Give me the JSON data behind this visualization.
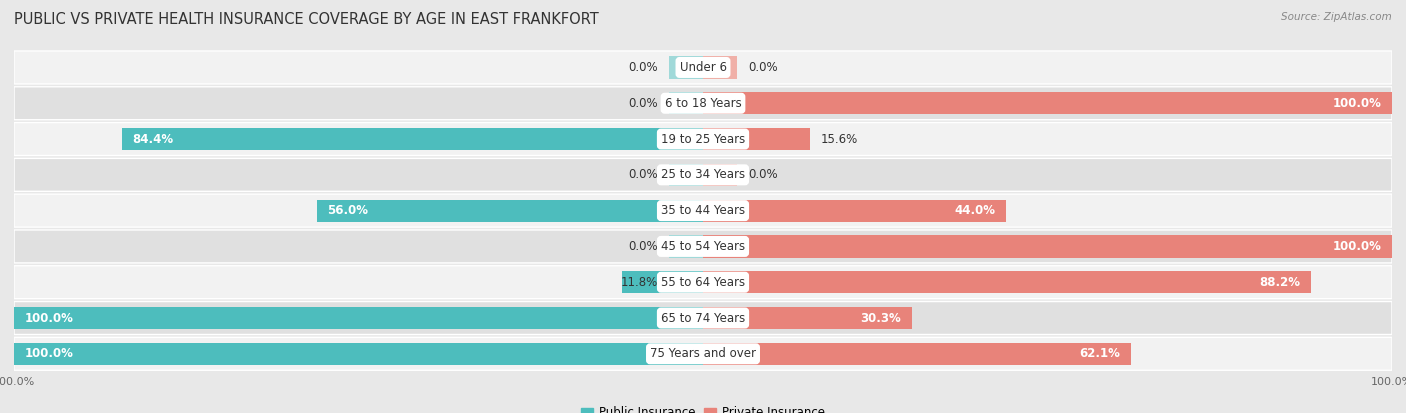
{
  "title": "PUBLIC VS PRIVATE HEALTH INSURANCE COVERAGE BY AGE IN EAST FRANKFORT",
  "source": "Source: ZipAtlas.com",
  "categories": [
    "Under 6",
    "6 to 18 Years",
    "19 to 25 Years",
    "25 to 34 Years",
    "35 to 44 Years",
    "45 to 54 Years",
    "55 to 64 Years",
    "65 to 74 Years",
    "75 Years and over"
  ],
  "public_values": [
    0.0,
    0.0,
    84.4,
    0.0,
    56.0,
    0.0,
    11.8,
    100.0,
    100.0
  ],
  "private_values": [
    0.0,
    100.0,
    15.6,
    0.0,
    44.0,
    100.0,
    88.2,
    30.3,
    62.1
  ],
  "public_color": "#4dbdbd",
  "private_color": "#e8837a",
  "public_color_light": "#a0d9d9",
  "private_color_light": "#f0b0a8",
  "bar_height": 0.62,
  "background_color": "#e8e8e8",
  "row_bg_light": "#f2f2f2",
  "row_bg_dark": "#e0e0e0",
  "xlim_left": -100,
  "xlim_right": 100,
  "title_fontsize": 10.5,
  "label_fontsize": 8.5,
  "cat_fontsize": 8.5,
  "tick_fontsize": 8,
  "legend_fontsize": 8.5,
  "stub_size": 5.0,
  "row_sep_color": "#cccccc"
}
